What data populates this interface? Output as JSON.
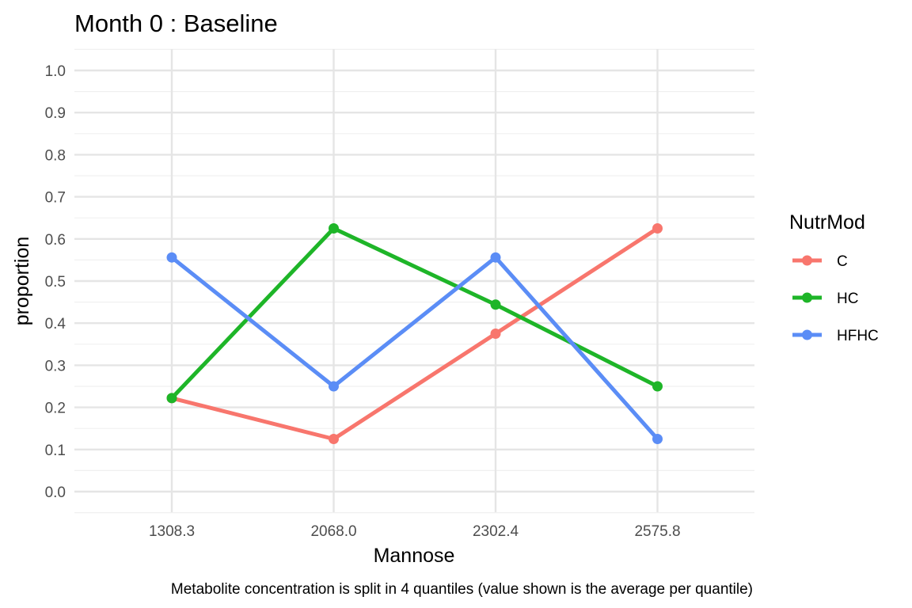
{
  "chart_data": {
    "type": "line",
    "title": "Month 0 : Baseline",
    "xlabel": "Mannose",
    "ylabel": "proportion",
    "caption": "Metabolite concentration is split in 4 quantiles (value shown is the average per quantile)",
    "categories": [
      "1308.3",
      "2068.0",
      "2302.4",
      "2575.8"
    ],
    "ylim": [
      -0.05,
      1.05
    ],
    "yticks": [
      0.0,
      0.1,
      0.2,
      0.3,
      0.4,
      0.5,
      0.6,
      0.7,
      0.8,
      0.9,
      1.0
    ],
    "ytick_labels": [
      "0.0",
      "0.1",
      "0.2",
      "0.3",
      "0.4",
      "0.5",
      "0.6",
      "0.7",
      "0.8",
      "0.9",
      "1.0"
    ],
    "grid": true,
    "legend": {
      "title": "NutrMod",
      "position": "right"
    },
    "series": [
      {
        "name": "C",
        "color": "#F8766D",
        "values": [
          0.222,
          0.125,
          0.375,
          0.625
        ]
      },
      {
        "name": "HC",
        "color": "#1EB528",
        "values": [
          0.222,
          0.625,
          0.444,
          0.25
        ]
      },
      {
        "name": "HFHC",
        "color": "#5B8DF6",
        "values": [
          0.556,
          0.25,
          0.556,
          0.125
        ]
      }
    ]
  }
}
